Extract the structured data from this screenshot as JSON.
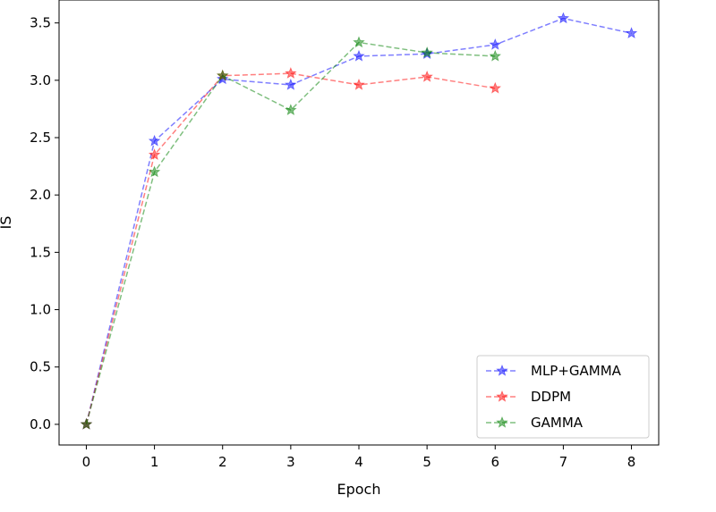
{
  "chart_data": {
    "type": "line",
    "xlabel": "Epoch",
    "ylabel": "IS",
    "xlim": [
      -0.4,
      8.4
    ],
    "ylim": [
      -0.18,
      3.7
    ],
    "x_ticks": [
      0,
      1,
      2,
      3,
      4,
      5,
      6,
      7,
      8
    ],
    "y_ticks": [
      0.0,
      0.5,
      1.0,
      1.5,
      2.0,
      2.5,
      3.0,
      3.5
    ],
    "x_tick_labels": [
      "0",
      "1",
      "2",
      "3",
      "4",
      "5",
      "6",
      "7",
      "8"
    ],
    "y_tick_labels": [
      "0.0",
      "0.5",
      "1.0",
      "1.5",
      "2.0",
      "2.5",
      "3.0",
      "3.5"
    ],
    "grid": false,
    "legend_position": "bottom-right",
    "series": [
      {
        "name": "MLP+GAMMA",
        "color": "#0000ff",
        "marker": "star",
        "line_style": "dashed",
        "x": [
          0,
          1,
          2,
          3,
          4,
          5,
          6,
          7,
          8
        ],
        "y": [
          0.0,
          2.47,
          3.01,
          2.96,
          3.21,
          3.23,
          3.31,
          3.54,
          3.41
        ]
      },
      {
        "name": "DDPM",
        "color": "#ff0000",
        "marker": "star",
        "line_style": "dashed",
        "x": [
          0,
          1,
          2,
          3,
          4,
          5,
          6
        ],
        "y": [
          0.0,
          2.35,
          3.04,
          3.06,
          2.96,
          3.03,
          2.93
        ]
      },
      {
        "name": "GAMMA",
        "color": "#008000",
        "marker": "star",
        "line_style": "dashed",
        "x": [
          0,
          1,
          2,
          3,
          4,
          5,
          6
        ],
        "y": [
          0.0,
          2.2,
          3.04,
          2.74,
          3.33,
          3.24,
          3.21
        ]
      }
    ]
  }
}
